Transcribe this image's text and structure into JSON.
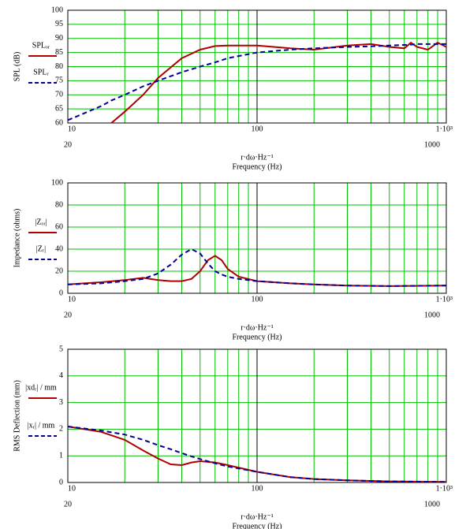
{
  "chart_data": [
    {
      "type": "line",
      "log_x": true,
      "grid": true,
      "ylabel": "SPL (dB)",
      "x_expression": "r·dω·Hz⁻¹",
      "xlabel": "Frequency (Hz)",
      "xrange_limits": [
        20,
        1000
      ],
      "xlim": [
        10,
        1000
      ],
      "xticks": [
        10,
        100,
        {
          "value": 1000,
          "label": "1·10³"
        }
      ],
      "xminorticks": [
        20,
        30,
        40,
        50,
        60,
        70,
        80,
        90,
        200,
        300,
        400,
        500,
        600,
        700,
        800,
        900
      ],
      "ylim": [
        60,
        100
      ],
      "yticks": [
        60,
        65,
        70,
        75,
        80,
        85,
        90,
        95,
        100
      ],
      "x": [
        10,
        15,
        17,
        20,
        25,
        30,
        40,
        50,
        60,
        70,
        100,
        150,
        200,
        300,
        400,
        500,
        600,
        650,
        700,
        800,
        900,
        1000
      ],
      "series": [
        {
          "name": "SPLₒᵣ",
          "color": "#b00000",
          "dashed": false,
          "values": [
            null,
            null,
            60,
            64,
            70,
            76,
            83,
            86,
            87.3,
            87.5,
            87.5,
            86.5,
            86,
            87.5,
            88,
            87,
            86.5,
            88.5,
            87,
            86,
            88.5,
            87
          ]
        },
        {
          "name": "SPLᵣ",
          "color": "#00009c",
          "dashed": true,
          "values": [
            61,
            66,
            68,
            70,
            73,
            75,
            78,
            80,
            81.5,
            83,
            85,
            86,
            86.5,
            87,
            87.2,
            87.5,
            87.7,
            87.8,
            88,
            88,
            88,
            88
          ]
        }
      ]
    },
    {
      "type": "line",
      "log_x": true,
      "grid": true,
      "ylabel": "Impedance (ohms)",
      "x_expression": "r·dω·Hz⁻¹",
      "xlabel": "Frequency (Hz)",
      "xrange_limits": [
        20,
        1000
      ],
      "xlim": [
        10,
        1000
      ],
      "xticks": [
        10,
        100,
        {
          "value": 1000,
          "label": "1·10³"
        }
      ],
      "xminorticks": [
        20,
        30,
        40,
        50,
        60,
        70,
        80,
        90,
        200,
        300,
        400,
        500,
        600,
        700,
        800,
        900
      ],
      "ylim": [
        0,
        100
      ],
      "yticks": [
        0,
        20,
        40,
        60,
        80,
        100
      ],
      "x": [
        10,
        15,
        20,
        25,
        30,
        35,
        40,
        45,
        50,
        55,
        60,
        65,
        70,
        80,
        100,
        150,
        200,
        300,
        500,
        1000
      ],
      "series": [
        {
          "name": "|Zₒᵣ|",
          "color": "#b00000",
          "dashed": false,
          "values": [
            8,
            10,
            12,
            14,
            12,
            11,
            11,
            13,
            20,
            30,
            34,
            30,
            22,
            15,
            11,
            9,
            8,
            7,
            6.5,
            7
          ]
        },
        {
          "name": "|Zᵣ|",
          "color": "#00009c",
          "dashed": true,
          "values": [
            8,
            9,
            11,
            13,
            18,
            26,
            35,
            40,
            36,
            27,
            20,
            17,
            15,
            13,
            11,
            9,
            8,
            7,
            6.5,
            7
          ]
        }
      ]
    },
    {
      "type": "line",
      "log_x": true,
      "grid": true,
      "ylabel": "RMS Deflection (mm)",
      "x_expression": "r·dω·Hz⁻¹",
      "xlabel": "Frequency (Hz)",
      "xrange_limits": [
        20,
        1000
      ],
      "xlim": [
        10,
        1000
      ],
      "xticks": [
        10,
        100,
        {
          "value": 1000,
          "label": "1·10³"
        }
      ],
      "xminorticks": [
        20,
        30,
        40,
        50,
        60,
        70,
        80,
        90,
        200,
        300,
        400,
        500,
        600,
        700,
        800,
        900
      ],
      "ylim": [
        0,
        5
      ],
      "yticks": [
        0,
        1,
        2,
        3,
        4,
        5
      ],
      "x": [
        10,
        15,
        20,
        25,
        30,
        35,
        40,
        45,
        50,
        60,
        70,
        100,
        150,
        200,
        300,
        500,
        1000
      ],
      "series": [
        {
          "name": "|xdᵣ| / mm",
          "color": "#b00000",
          "dashed": false,
          "values": [
            2.1,
            1.9,
            1.6,
            1.2,
            0.9,
            0.68,
            0.65,
            0.75,
            0.8,
            0.75,
            0.65,
            0.4,
            0.2,
            0.13,
            0.08,
            0.04,
            0.02
          ]
        },
        {
          "name": "|xᵣ| / mm",
          "color": "#00009c",
          "dashed": true,
          "values": [
            2.1,
            1.95,
            1.8,
            1.6,
            1.4,
            1.25,
            1.1,
            0.98,
            0.88,
            0.72,
            0.6,
            0.4,
            0.2,
            0.13,
            0.08,
            0.04,
            0.02
          ]
        }
      ]
    }
  ]
}
